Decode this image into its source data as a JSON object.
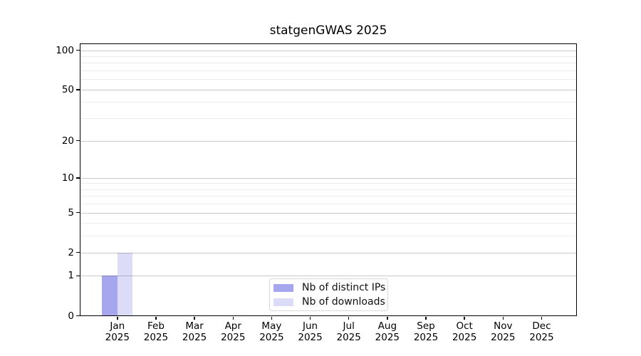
{
  "title": "statgenGWAS 2025",
  "colors": {
    "bar_distinct_ips": "#a6a6ef",
    "bar_downloads": "#dcdcf8",
    "grid_major": "#c6c6c6",
    "grid_minor": "#ebebeb",
    "axis_box": "#000000",
    "text": "#000000",
    "legend_border": "#d8d8d8",
    "background": "#ffffff"
  },
  "chart_data": {
    "type": "bar",
    "title": "statgenGWAS 2025",
    "categories": [
      "Jan",
      "Feb",
      "Mar",
      "Apr",
      "May",
      "Jun",
      "Jul",
      "Aug",
      "Sep",
      "Oct",
      "Nov",
      "Dec"
    ],
    "year": "2025",
    "series": [
      {
        "name": "Nb of distinct IPs",
        "color": "#a6a6ef",
        "values": [
          1,
          0,
          0,
          0,
          0,
          0,
          0,
          0,
          0,
          0,
          0,
          0
        ]
      },
      {
        "name": "Nb of downloads",
        "color": "#dcdcf8",
        "values": [
          2,
          0,
          0,
          0,
          0,
          0,
          0,
          0,
          0,
          0,
          0,
          0
        ]
      }
    ],
    "xlabel": "",
    "ylabel": "",
    "y_axis": {
      "scale": "log1p",
      "major_ticks": [
        0,
        1,
        2,
        5,
        10,
        20,
        50,
        100
      ],
      "minor_ticks": [
        3,
        4,
        6,
        7,
        8,
        9,
        30,
        40,
        60,
        70,
        80,
        90
      ],
      "ylim": [
        0,
        110
      ]
    },
    "grid": true,
    "legend": {
      "position": "lower center"
    }
  }
}
